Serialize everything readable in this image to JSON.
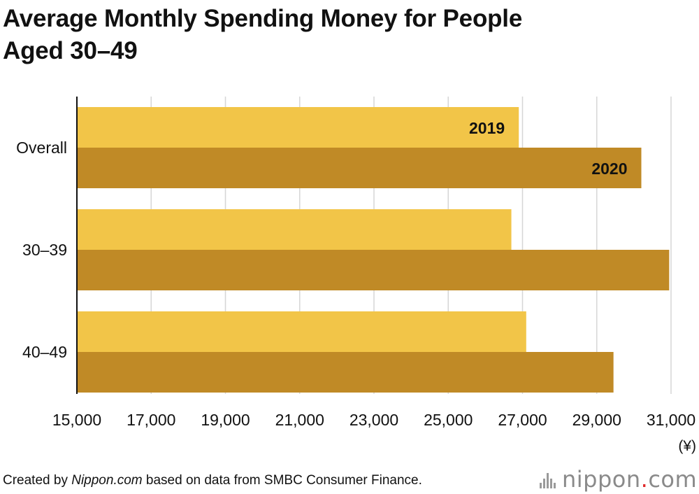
{
  "chart_data": {
    "type": "bar",
    "orientation": "horizontal",
    "title_lines": [
      "Average Monthly Spending Money for People",
      "Aged 30–49"
    ],
    "categories": [
      "Overall",
      "30–39",
      "40–49"
    ],
    "series": [
      {
        "name": "2019",
        "values": [
          26900,
          26700,
          27100
        ],
        "color": "#f2c548"
      },
      {
        "name": "2020",
        "values": [
          30200,
          30950,
          29450
        ],
        "color": "#c08a26"
      }
    ],
    "xlim": [
      15000,
      31000
    ],
    "ticks": [
      15000,
      17000,
      19000,
      21000,
      23000,
      25000,
      27000,
      29000,
      31000
    ],
    "tick_labels": [
      "15,000",
      "17,000",
      "19,000",
      "21,000",
      "23,000",
      "25,000",
      "27,000",
      "29,000",
      "31,000"
    ],
    "unit": "(¥)",
    "grid": true,
    "legend": "inline-labels"
  },
  "footer": {
    "prefix": "Created by ",
    "site": "Nippon.com",
    "suffix": " based on data from SMBC Consumer Finance."
  },
  "logo": {
    "word": "nippon",
    "dot": ".",
    "tld": "com"
  }
}
